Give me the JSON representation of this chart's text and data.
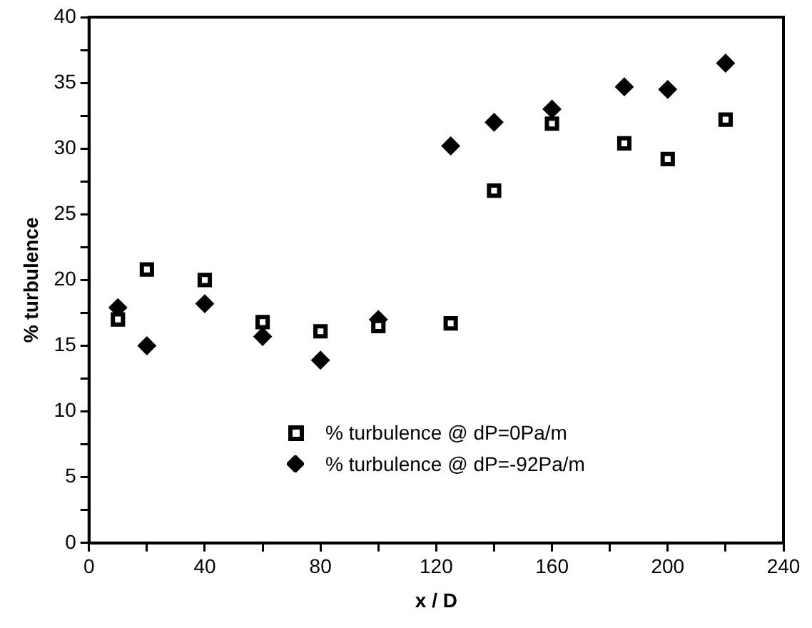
{
  "chart_data": {
    "type": "scatter",
    "xlabel": "x / D",
    "ylabel": "% turbulence",
    "x": [
      10,
      20,
      40,
      60,
      80,
      100,
      125,
      140,
      160,
      185,
      200,
      220
    ],
    "series": [
      {
        "name": "% turbulence @ dP=0Pa/m",
        "color": "#000000",
        "marker": "square",
        "values": [
          17.0,
          20.8,
          20.0,
          16.8,
          16.1,
          16.5,
          16.7,
          26.8,
          31.9,
          30.4,
          29.2,
          32.2
        ]
      },
      {
        "name": "% turbulence @ dP=-92Pa/m",
        "color": "#000000",
        "marker": "diamond",
        "values": [
          17.9,
          15.0,
          18.2,
          15.7,
          13.9,
          17.0,
          30.2,
          32.0,
          33.0,
          34.7,
          34.5,
          36.5
        ]
      }
    ],
    "xlim": [
      0,
      240
    ],
    "xticks": [
      0,
      {
        "value": 20,
        "label": null
      },
      40,
      {
        "value": 60,
        "label": null
      },
      80,
      {
        "value": 100,
        "label": null
      },
      120,
      {
        "value": 140,
        "label": null
      },
      160,
      {
        "value": 180,
        "label": null
      },
      200,
      {
        "value": 220,
        "label": null
      },
      240
    ],
    "ylim": [
      0,
      40
    ],
    "yticks": [
      0,
      {
        "value": 2.5,
        "label": null
      },
      5,
      {
        "value": 7.5,
        "label": null
      },
      10,
      {
        "value": 12.5,
        "label": null
      },
      15,
      {
        "value": 17.5,
        "label": null
      },
      20,
      {
        "value": 22.5,
        "label": null
      },
      25,
      {
        "value": 27.5,
        "label": null
      },
      30,
      {
        "value": 32.5,
        "label": null
      },
      35,
      {
        "value": 37.5,
        "label": null
      },
      40
    ],
    "grid": false,
    "legend": "bottom"
  }
}
